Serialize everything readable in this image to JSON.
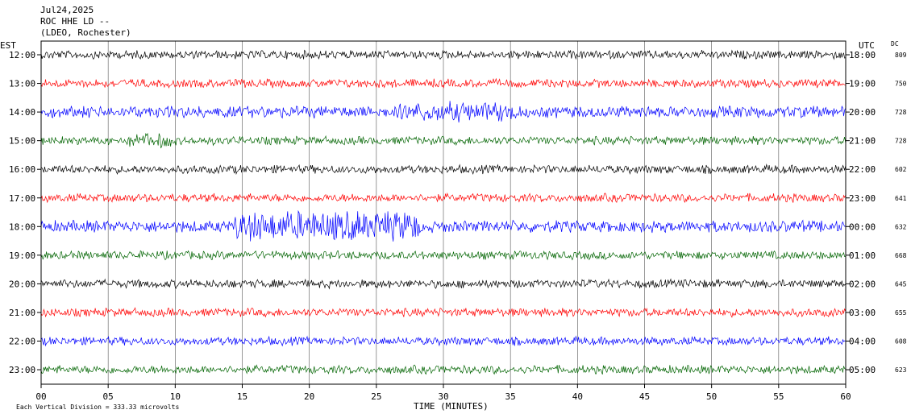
{
  "header": {
    "date": "Jul24,2025",
    "station": "ROC HHE LD --",
    "network": "(LDEO, Rochester)"
  },
  "labels": {
    "left_tz": "EST",
    "right_tz": "UTC",
    "dc": "DC",
    "scale_note": "Each Vertical Division = 333.33 microvolts"
  },
  "colors": [
    "#000000",
    "#ff0000",
    "#0000ff",
    "#006400"
  ],
  "chart_data": {
    "type": "line",
    "title": "",
    "xlabel": "TIME (MINUTES)",
    "ylabel": "",
    "xlim": [
      0,
      60
    ],
    "x_ticks": [
      "00",
      "05",
      "10",
      "15",
      "20",
      "25",
      "30",
      "35",
      "40",
      "45",
      "50",
      "55",
      "60"
    ],
    "grid": true,
    "rows": [
      {
        "est": "12:00",
        "utc": "18:00",
        "dc": "809"
      },
      {
        "est": "13:00",
        "utc": "19:00",
        "dc": "750"
      },
      {
        "est": "14:00",
        "utc": "20:00",
        "dc": "728"
      },
      {
        "est": "15:00",
        "utc": "21:00",
        "dc": "728"
      },
      {
        "est": "16:00",
        "utc": "22:00",
        "dc": "602"
      },
      {
        "est": "17:00",
        "utc": "23:00",
        "dc": "641"
      },
      {
        "est": "18:00",
        "utc": "00:00",
        "dc": "632"
      },
      {
        "est": "19:00",
        "utc": "01:00",
        "dc": "668"
      },
      {
        "est": "20:00",
        "utc": "02:00",
        "dc": "645"
      },
      {
        "est": "21:00",
        "utc": "03:00",
        "dc": "655"
      },
      {
        "est": "22:00",
        "utc": "04:00",
        "dc": "608"
      },
      {
        "est": "23:00",
        "utc": "05:00",
        "dc": "623"
      }
    ]
  }
}
